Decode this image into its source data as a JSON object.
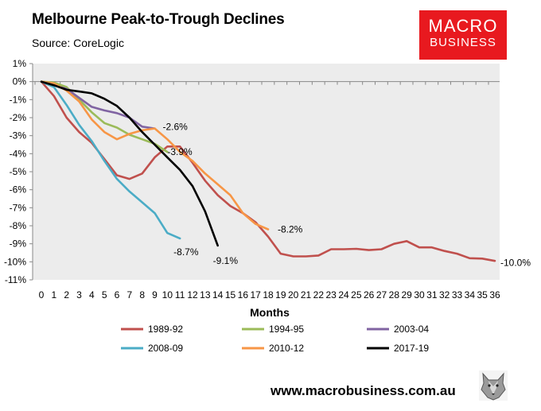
{
  "header": {
    "title": "Melbourne Peak-to-Trough Declines",
    "subtitle": "Source: CoreLogic"
  },
  "logo": {
    "line1": "MACRO",
    "line2": "BUSINESS",
    "color": "#e8191f"
  },
  "footer": {
    "website": "www.macrobusiness.com.au",
    "mascot_icon": "wolf-head-icon"
  },
  "chart_data": {
    "type": "line",
    "title": "Melbourne Peak-to-Trough Declines",
    "subtitle": "Source: CoreLogic",
    "xlabel": "Months",
    "ylabel": "",
    "xlim": [
      0,
      36
    ],
    "ylim": [
      -11,
      1
    ],
    "x_ticks": [
      "0",
      "1",
      "2",
      "3",
      "4",
      "5",
      "6",
      "7",
      "8",
      "9",
      "10",
      "11",
      "12",
      "13",
      "14",
      "15",
      "16",
      "17",
      "18",
      "19",
      "20",
      "21",
      "22",
      "23",
      "24",
      "25",
      "26",
      "27",
      "28",
      "29",
      "30",
      "31",
      "32",
      "33",
      "34",
      "35",
      "36"
    ],
    "y_ticks": [
      "1%",
      "0%",
      "-1%",
      "-2%",
      "-3%",
      "-4%",
      "-5%",
      "-6%",
      "-7%",
      "-8%",
      "-9%",
      "-10%",
      "-11%"
    ],
    "grid": false,
    "legend_position": "bottom",
    "series": [
      {
        "name": "1989-92",
        "color": "#c0504d",
        "values": [
          0,
          -0.8,
          -2.0,
          -2.8,
          -3.4,
          -4.3,
          -5.2,
          -5.4,
          -5.1,
          -4.2,
          -3.6,
          -3.6,
          -4.5,
          -5.5,
          -6.3,
          -6.9,
          -7.3,
          -7.8,
          -8.6,
          -9.55,
          -9.7,
          -9.7,
          -9.65,
          -9.3,
          -9.3,
          -9.28,
          -9.35,
          -9.3,
          -9.0,
          -8.85,
          -9.2,
          -9.2,
          -9.4,
          -9.55,
          -9.8,
          -9.82,
          -9.95
        ]
      },
      {
        "name": "1994-95",
        "color": "#9bbb59",
        "values": [
          0,
          -0.05,
          -0.3,
          -1.0,
          -1.7,
          -2.3,
          -2.55,
          -2.95,
          -3.2,
          -3.45,
          -3.9
        ]
      },
      {
        "name": "2003-04",
        "color": "#8064a2",
        "values": [
          0,
          -0.2,
          -0.4,
          -0.9,
          -1.4,
          -1.6,
          -1.75,
          -2.0,
          -2.5,
          -2.6
        ]
      },
      {
        "name": "2008-09",
        "color": "#4bacc6",
        "values": [
          0,
          -0.3,
          -1.3,
          -2.4,
          -3.3,
          -4.4,
          -5.4,
          -6.1,
          -6.7,
          -7.3,
          -8.4,
          -8.7
        ]
      },
      {
        "name": "2010-12",
        "color": "#f79646",
        "values": [
          0,
          -0.1,
          -0.5,
          -1.1,
          -2.1,
          -2.8,
          -3.2,
          -2.9,
          -2.7,
          -2.6,
          -3.2,
          -3.9,
          -4.4,
          -5.1,
          -5.7,
          -6.3,
          -7.3,
          -7.9,
          -8.2
        ]
      },
      {
        "name": "2017-19",
        "color": "#000000",
        "values": [
          0,
          -0.2,
          -0.45,
          -0.55,
          -0.65,
          -0.95,
          -1.35,
          -2.0,
          -2.8,
          -3.5,
          -4.2,
          -4.9,
          -5.8,
          -7.2,
          -9.1
        ]
      }
    ],
    "annotations": [
      {
        "text": "-2.6%",
        "x": 9,
        "y": -2.6
      },
      {
        "text": "-3.9%",
        "x": 10,
        "y": -3.9
      },
      {
        "text": "-8.2%",
        "x": 18,
        "y": -8.2
      },
      {
        "text": "-8.7%",
        "x": 11,
        "y": -8.7
      },
      {
        "text": "-9.1%",
        "x": 14,
        "y": -9.1
      },
      {
        "text": "-10.0%",
        "x": 36,
        "y": -10.0
      }
    ]
  }
}
